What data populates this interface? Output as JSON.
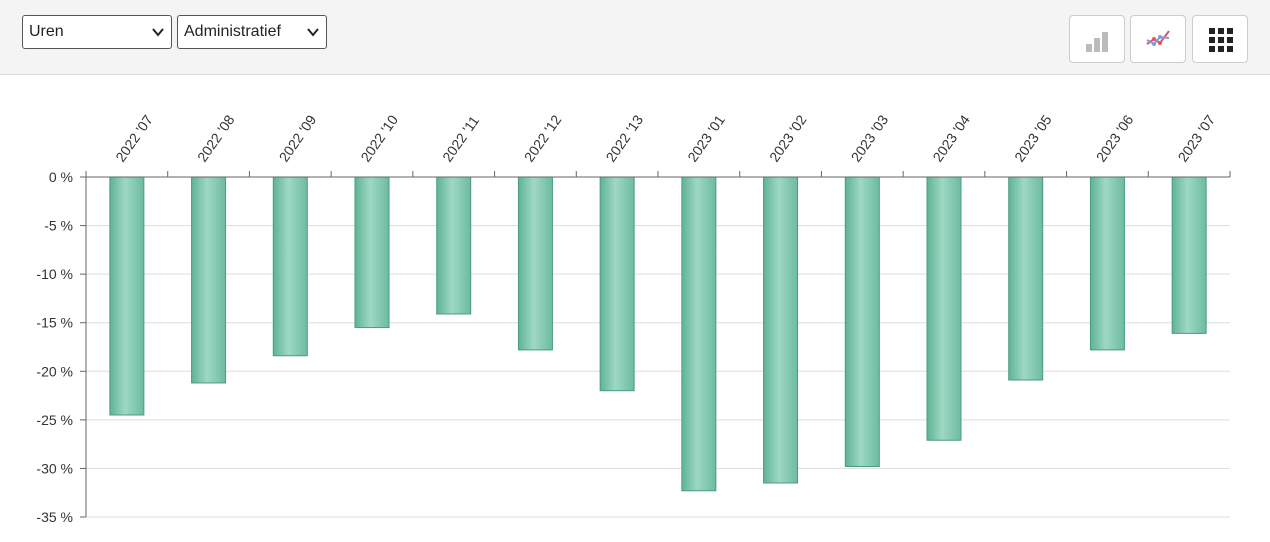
{
  "controls": {
    "metric_select": {
      "value": "Uren"
    },
    "category_select": {
      "value": "Administratief"
    }
  },
  "toolbar_icons": [
    "bar-chart-icon",
    "line-chart-icon",
    "grid-icon"
  ],
  "colors": {
    "bar_fill": "#7cc6ae",
    "bar_edge": "#4a9c80",
    "grid": "#dddddd"
  },
  "chart_data": {
    "type": "bar",
    "categories": [
      "2022 '07",
      "2022 '08",
      "2022 '09",
      "2022 '10",
      "2022 '11",
      "2022 '12",
      "2022 '13",
      "2023 '01",
      "2023 '02",
      "2023 '03",
      "2023 '04",
      "2023 '05",
      "2023 '06",
      "2023 '07"
    ],
    "values": [
      -24.5,
      -21.2,
      -18.4,
      -15.5,
      -14.1,
      -17.8,
      -22.0,
      -32.3,
      -31.5,
      -29.8,
      -27.1,
      -20.9,
      -17.8,
      -16.1
    ],
    "y_ticks": [
      "0 %",
      "-5 %",
      "-10 %",
      "-15 %",
      "-20 %",
      "-25 %",
      "-30 %",
      "-35 %"
    ],
    "ylim": [
      -35,
      0
    ],
    "tick_step": 5,
    "category_axis_position": "top",
    "grid": true,
    "title": "",
    "xlabel": "",
    "ylabel": ""
  }
}
